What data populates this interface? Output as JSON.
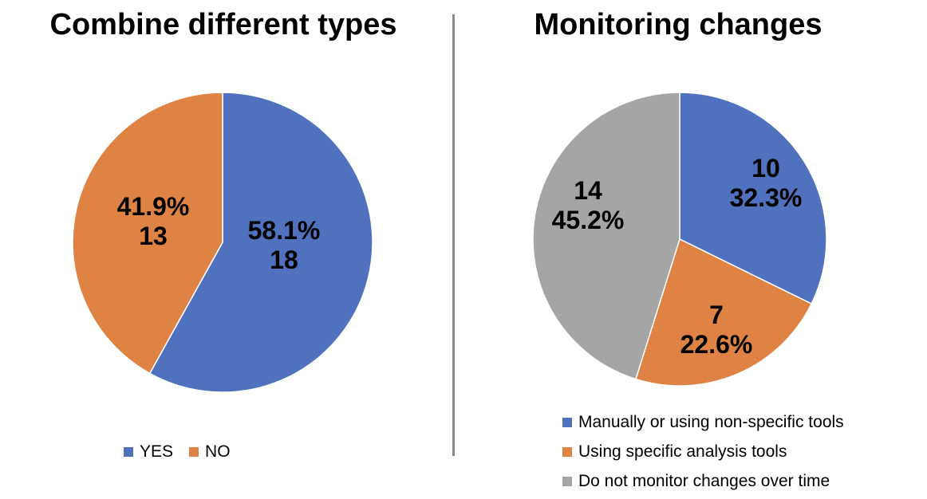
{
  "chart_data": [
    {
      "type": "pie",
      "title": "Combine different types",
      "slices": [
        {
          "label": "YES",
          "value": 18,
          "percent": "58.1%",
          "count": "18",
          "color": "#4F71BE"
        },
        {
          "label": "NO",
          "value": 13,
          "percent": "41.9%",
          "count": "13",
          "color": "#DE8344"
        }
      ],
      "legend": {
        "position": "bottom"
      }
    },
    {
      "type": "pie",
      "title": "Monitoring changes",
      "slices": [
        {
          "label": "Manually or using non-specific tools",
          "value": 10,
          "percent": "32.3%",
          "count": "10",
          "color": "#4F71BE"
        },
        {
          "label": "Using specific analysis tools",
          "value": 7,
          "percent": "22.6%",
          "count": "7",
          "color": "#DE8344"
        },
        {
          "label": "Do not monitor changes over time",
          "value": 14,
          "percent": "45.2%",
          "count": "14",
          "color": "#A5A5A5"
        }
      ],
      "legend": {
        "position": "bottom"
      }
    }
  ]
}
